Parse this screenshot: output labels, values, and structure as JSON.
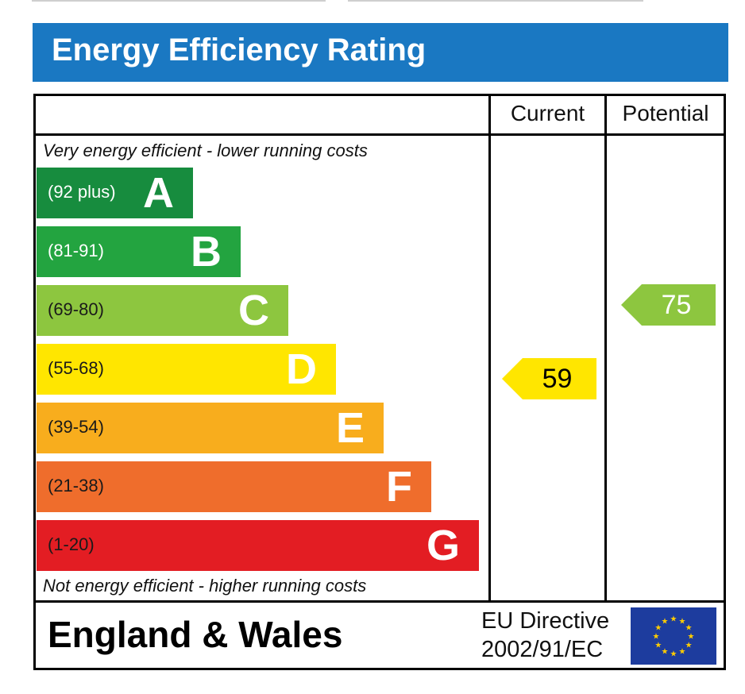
{
  "header": {
    "title": "Energy Efficiency Rating"
  },
  "columns": {
    "current": "Current",
    "potential": "Potential"
  },
  "notes": {
    "top": "Very energy efficient - lower running costs",
    "bottom": "Not energy efficient - higher running costs"
  },
  "chart_data": {
    "type": "bar",
    "title": "Energy Efficiency Rating",
    "bands": [
      {
        "letter": "A",
        "range": "(92 plus)",
        "color": "#178c3e",
        "text_color": "#ffffff"
      },
      {
        "letter": "B",
        "range": "(81-91)",
        "color": "#23a440",
        "text_color": "#ffffff"
      },
      {
        "letter": "C",
        "range": "(69-80)",
        "color": "#8dc63f",
        "text_color": "#1a1a1a"
      },
      {
        "letter": "D",
        "range": "(55-68)",
        "color": "#ffe600",
        "text_color": "#1a1a1a"
      },
      {
        "letter": "E",
        "range": "(39-54)",
        "color": "#f8ad1d",
        "text_color": "#1a1a1a"
      },
      {
        "letter": "F",
        "range": "(21-38)",
        "color": "#ef6d2c",
        "text_color": "#1a1a1a"
      },
      {
        "letter": "G",
        "range": "(1-20)",
        "color": "#e31d23",
        "text_color": "#1a1a1a"
      }
    ],
    "ratings": {
      "current": {
        "value": 59,
        "label": "59",
        "band": "D",
        "color": "#ffe600",
        "text_color": "#000000"
      },
      "potential": {
        "value": 75,
        "label": "75",
        "band": "C",
        "color": "#8dc63f",
        "text_color": "#ffffff"
      }
    }
  },
  "footer": {
    "country": "England & Wales",
    "directive_line1": "EU Directive",
    "directive_line2": "2002/91/EC",
    "flag_icon": "eu-flag-icon"
  }
}
